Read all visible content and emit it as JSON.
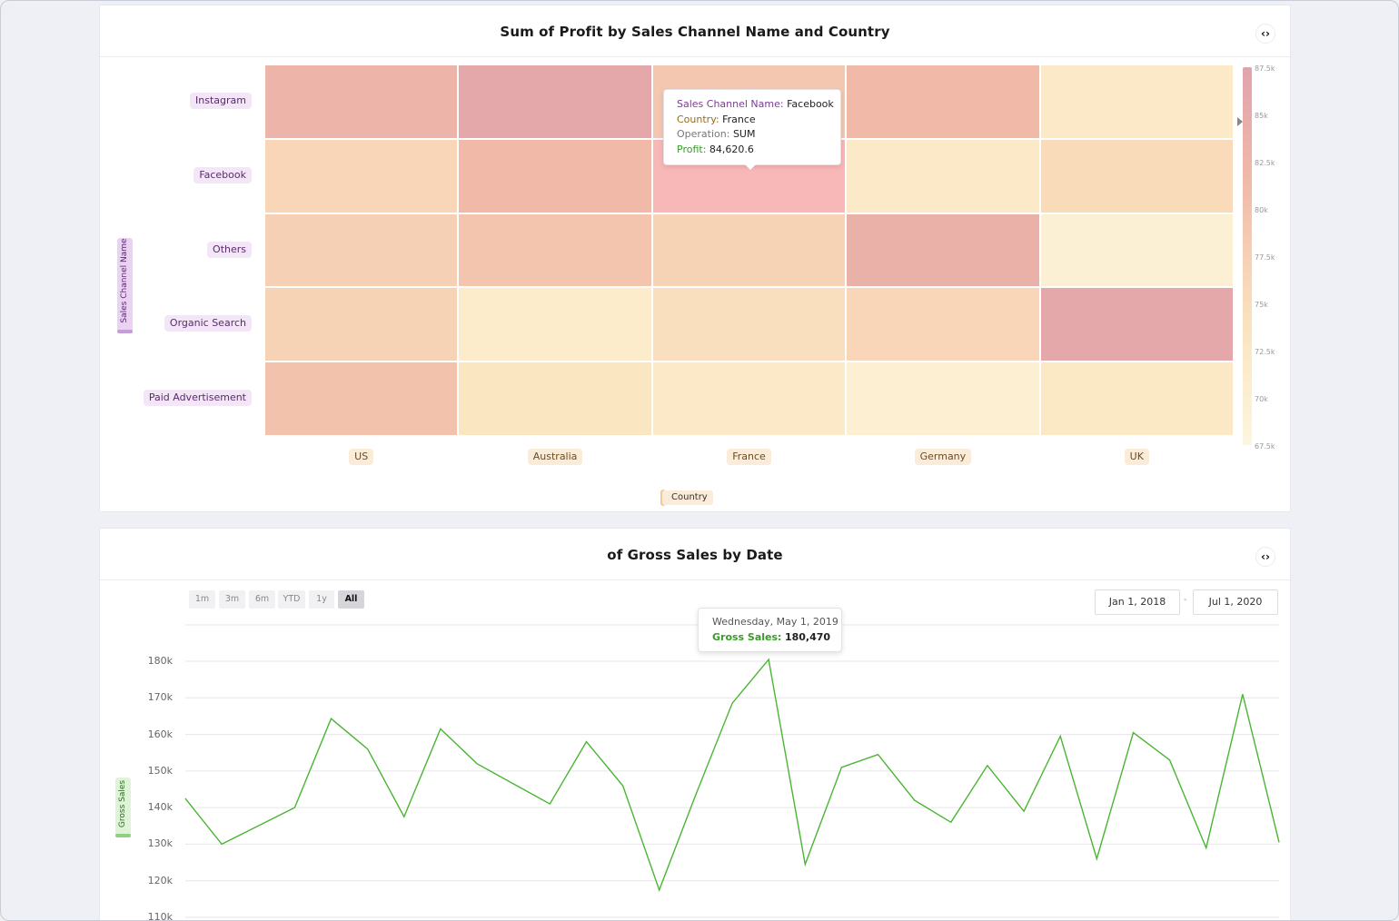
{
  "colors": {
    "accent_purple": "#5b2a6e",
    "accent_orange": "#6e4b22",
    "line_green": "#4ab533",
    "heat_low": "#fdf6df",
    "heat_high": "#e0a3ad"
  },
  "heatmap_panel": {
    "title": "Sum of Profit by Sales Channel Name and Country",
    "code_icon": "code-brackets-icon",
    "y_axis_title": "Sales Channel Name",
    "x_axis_title": "Country",
    "tooltip": {
      "channel_label": "Sales Channel Name:",
      "channel_value": "Facebook",
      "country_label": "Country:",
      "country_value": "France",
      "operation_label": "Operation:",
      "operation_value": "SUM",
      "profit_label": "Profit:",
      "profit_value": "84,620.6"
    },
    "scale_ticks": [
      "87.5k",
      "85k",
      "82.5k",
      "80k",
      "77.5k",
      "75k",
      "72.5k",
      "70k",
      "67.5k"
    ]
  },
  "line_panel": {
    "title": "of Gross Sales by Date",
    "code_icon": "code-brackets-icon",
    "range_buttons": [
      "1m",
      "3m",
      "6m",
      "YTD",
      "1y",
      "All"
    ],
    "active_range": "All",
    "date_from": "Jan 1, 2018",
    "date_sep": "-",
    "date_to": "Jul 1, 2020",
    "y_axis_title": "Gross Sales",
    "tooltip": {
      "date": "Wednesday, May 1, 2019",
      "label": "Gross Sales:",
      "value": "180,470"
    },
    "y_ticks": [
      "180k",
      "170k",
      "160k",
      "150k",
      "140k",
      "130k",
      "120k",
      "110k"
    ]
  },
  "chart_data": [
    {
      "type": "heatmap",
      "title": "Sum of Profit by Sales Channel Name and Country",
      "xlabel": "Country",
      "ylabel": "Sales Channel Name",
      "x": [
        "US",
        "Australia",
        "France",
        "Germany",
        "UK"
      ],
      "y": [
        "Instagram",
        "Facebook",
        "Others",
        "Organic Search",
        "Paid Advertisement"
      ],
      "values": [
        [
          82500,
          85500,
          79000,
          81500,
          72000
        ],
        [
          76500,
          81500,
          84620.6,
          72000,
          75500
        ],
        [
          77500,
          79500,
          77000,
          83500,
          69500
        ],
        [
          77000,
          71000,
          74500,
          76500,
          85500
        ],
        [
          80000,
          73000,
          72000,
          70000,
          72500
        ]
      ],
      "scale_range": [
        67500,
        87500
      ],
      "scale_ticks": [
        "87.5k",
        "85k",
        "82.5k",
        "80k",
        "77.5k",
        "75k",
        "72.5k",
        "70k",
        "67.5k"
      ]
    },
    {
      "type": "line",
      "title": "of Gross Sales by Date",
      "ylabel": "Gross Sales",
      "x": [
        "2018-01-01",
        "2018-02-01",
        "2018-03-01",
        "2018-04-01",
        "2018-05-01",
        "2018-06-01",
        "2018-07-01",
        "2018-08-01",
        "2018-09-01",
        "2018-10-01",
        "2018-11-01",
        "2018-12-01",
        "2019-01-01",
        "2019-02-01",
        "2019-03-01",
        "2019-04-01",
        "2019-05-01",
        "2019-06-01",
        "2019-07-01",
        "2019-08-01",
        "2019-09-01",
        "2019-10-01",
        "2019-11-01",
        "2019-12-01",
        "2020-01-01",
        "2020-02-01",
        "2020-03-01",
        "2020-04-01",
        "2020-05-01",
        "2020-06-01",
        "2020-07-01"
      ],
      "series": [
        {
          "name": "Gross Sales",
          "values": [
            142500,
            130000,
            135000,
            140000,
            164300,
            156000,
            137500,
            161500,
            152000,
            146500,
            141000,
            158000,
            146000,
            117500,
            143500,
            168500,
            180470,
            124500,
            151000,
            154500,
            142000,
            136000,
            151500,
            139000,
            159500,
            126000,
            160500,
            153000,
            129000,
            171000,
            130500
          ]
        }
      ],
      "ylim": [
        110000,
        180000
      ],
      "grid": true
    }
  ]
}
